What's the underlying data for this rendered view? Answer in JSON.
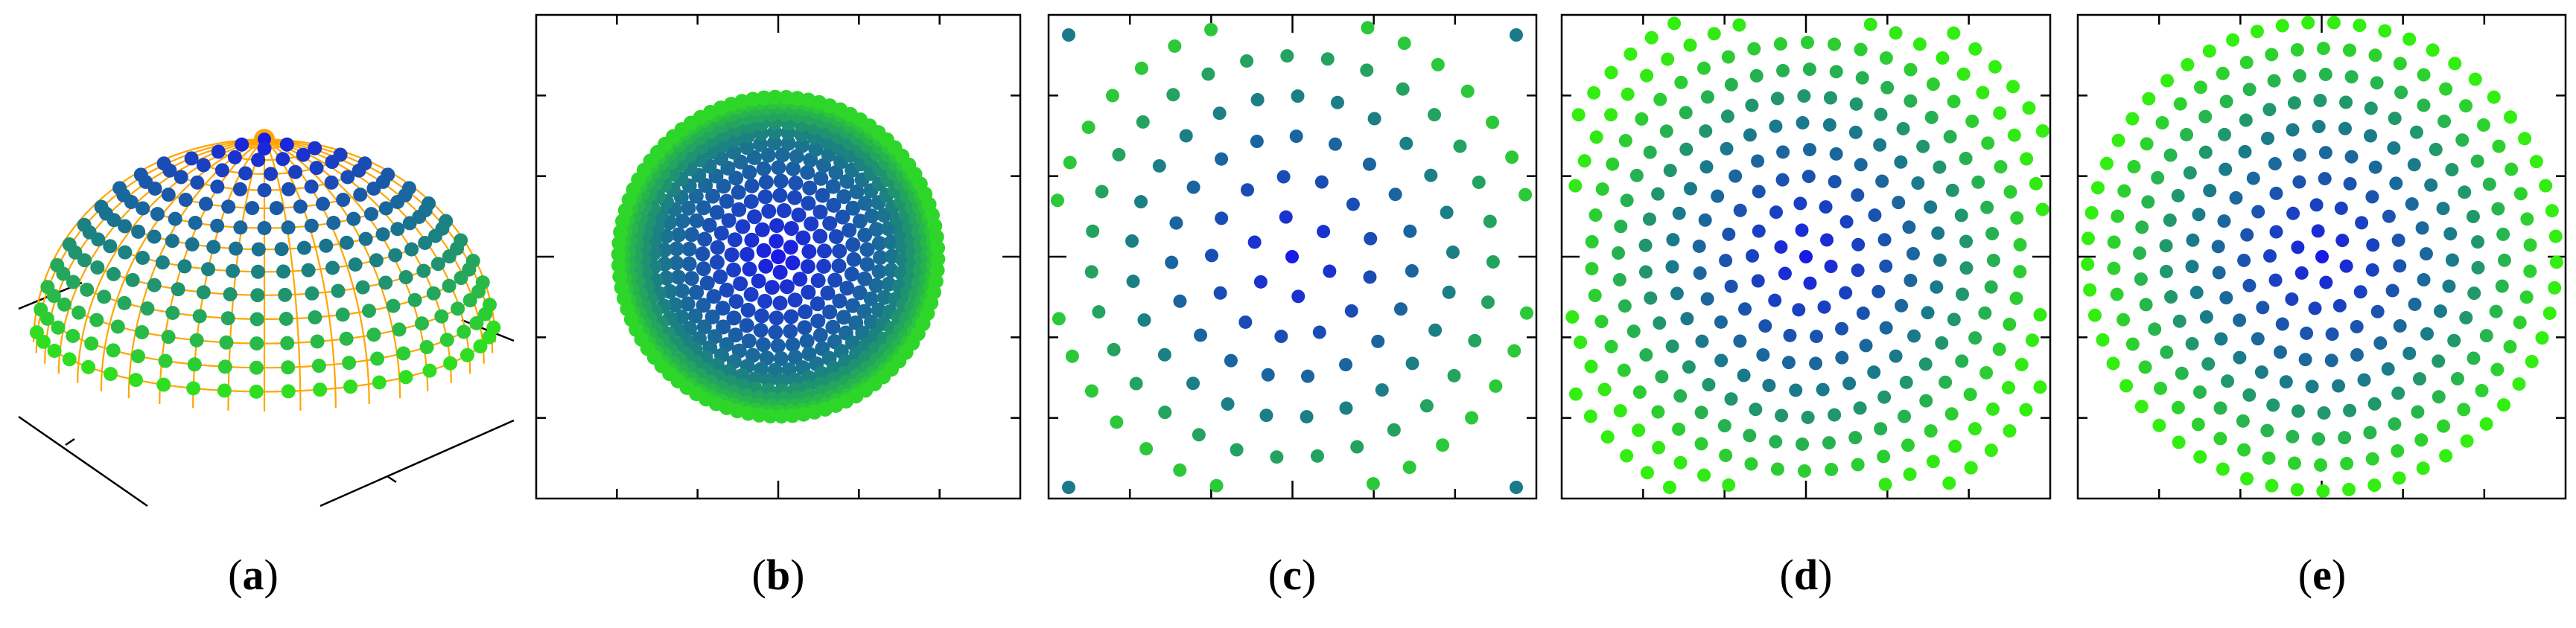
{
  "panels": [
    {
      "id": "a",
      "label": "a",
      "view": "3d-hemisphere-with-mesh"
    },
    {
      "id": "b",
      "label": "b",
      "view": "top-projection-orthographic"
    },
    {
      "id": "c",
      "label": "c",
      "view": "top-projection-sparse-rings"
    },
    {
      "id": "d",
      "label": "d",
      "view": "top-projection-dense-rings-clipped"
    },
    {
      "id": "e",
      "label": "e",
      "view": "top-projection-dense-rings-disk"
    }
  ],
  "colors": {
    "center": "#1a1ae6",
    "middle": "#1a7a8a",
    "edge": "#33ee11",
    "mesh": "#ffa500",
    "frame": "#000000",
    "background": "#ffffff"
  }
}
